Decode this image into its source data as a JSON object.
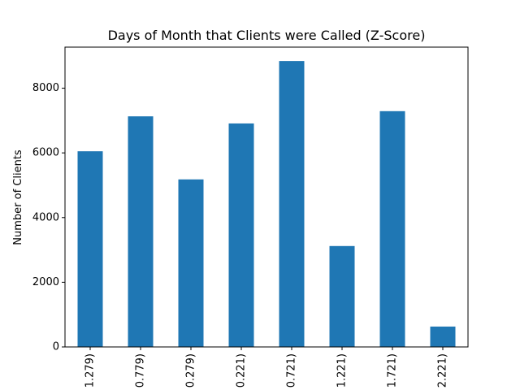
{
  "chart_data": {
    "type": "bar",
    "title": "Days of Month that Clients were Called (Z-Score)",
    "xlabel": "",
    "ylabel": "Number of Clients",
    "categories": [
      "1.279)",
      "0.779)",
      "0.279)",
      "0.221)",
      "0.721)",
      "1.221)",
      "1.721)",
      "2.221)"
    ],
    "values": [
      6050,
      7130,
      5180,
      6910,
      8840,
      3120,
      7290,
      630
    ],
    "ylim": [
      0,
      9270
    ],
    "yticks": [
      0,
      2000,
      4000,
      6000,
      8000
    ],
    "grid": false,
    "bar_color": "#1f77b4"
  }
}
